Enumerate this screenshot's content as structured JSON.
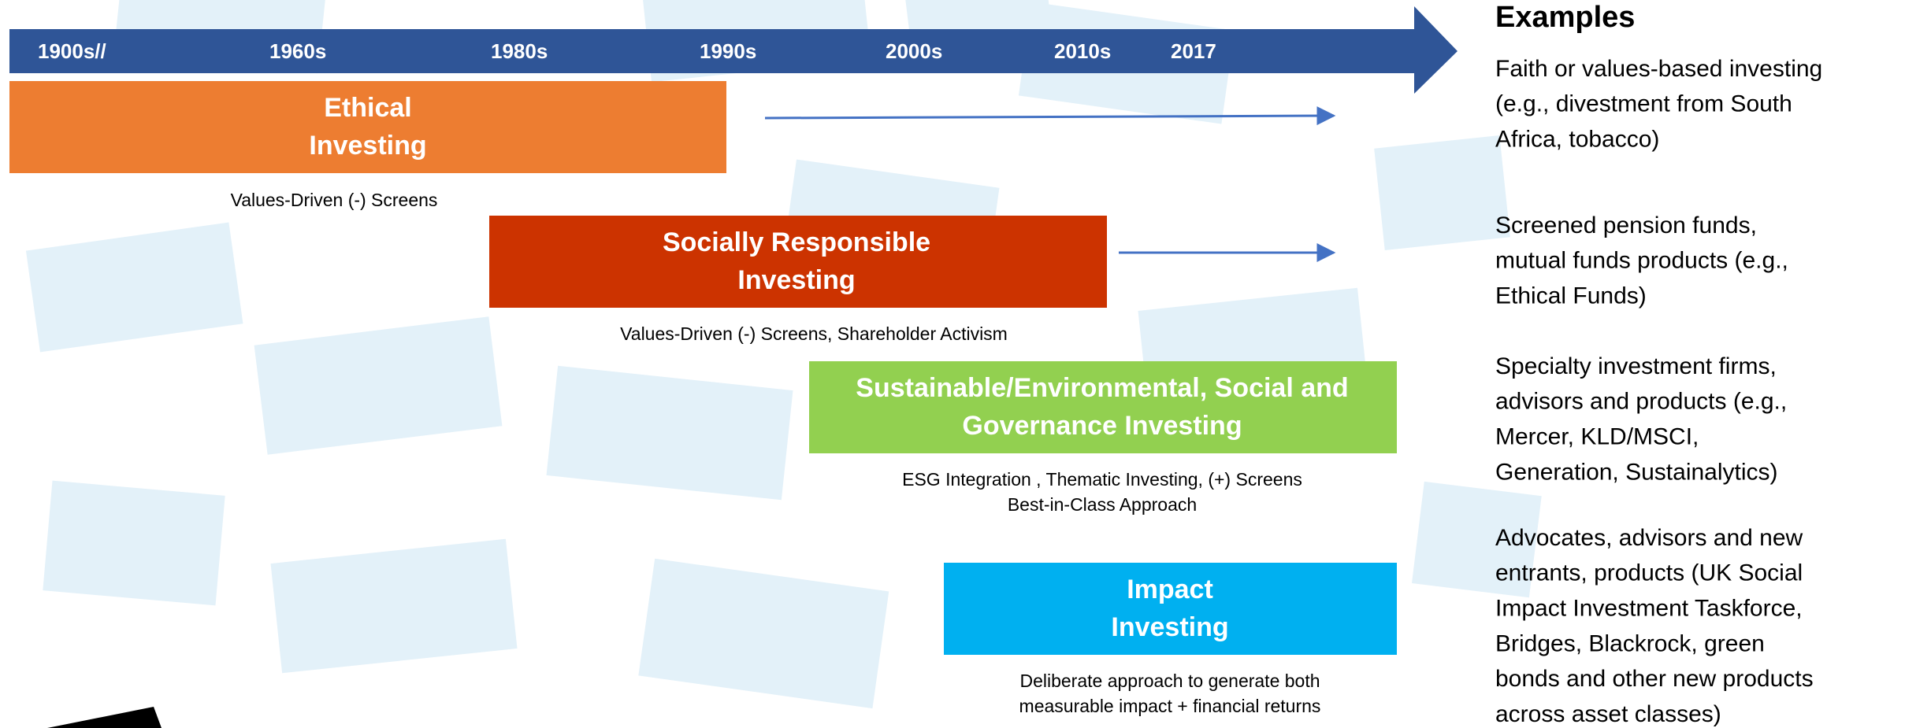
{
  "timeline": {
    "labels": [
      "1900s//",
      "1960s",
      "1980s",
      "1990s",
      "2000s",
      "2010s",
      "2017"
    ]
  },
  "stages": [
    {
      "title": [
        "Ethical",
        "Investing"
      ],
      "description": [
        "Values-Driven (-) Screens"
      ]
    },
    {
      "title": [
        "Socially Responsible",
        "Investing"
      ],
      "description": [
        "Values-Driven (-) Screens, Shareholder Activism"
      ]
    },
    {
      "title": [
        "Sustainable/Environmental, Social and",
        "Governance Investing"
      ],
      "description": [
        "ESG Integration , Thematic Investing, (+) Screens",
        "Best-in-Class Approach"
      ]
    },
    {
      "title": [
        "Impact",
        "Investing"
      ],
      "description": [
        "Deliberate approach to generate both",
        "measurable impact + financial returns"
      ]
    }
  ],
  "examples": {
    "heading": "Examples",
    "items": [
      [
        "Faith or values-based investing",
        "(e.g., divestment from South",
        "Africa, tobacco)"
      ],
      [
        "Screened pension funds,",
        "mutual funds products (e.g.,",
        "Ethical Funds)"
      ],
      [
        "Specialty investment firms,",
        "advisors and products (e.g.,",
        "Mercer, KLD/MSCI,",
        "Generation, Sustainalytics)"
      ],
      [
        "Advocates, advisors and new",
        "entrants, products (UK Social",
        "Impact Investment Taskforce,",
        "Bridges, Blackrock, green",
        "bonds and other new products",
        "across asset classes)"
      ]
    ]
  }
}
